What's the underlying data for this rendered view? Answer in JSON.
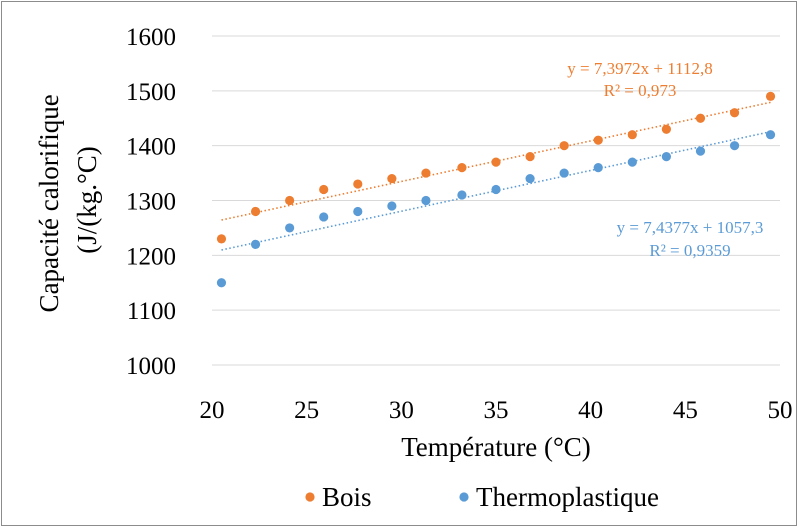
{
  "chart_data": {
    "type": "scatter",
    "xlabel": "Température (°C)",
    "ylabel_lines": [
      "Capacité calorifique",
      "(J/(kg.°C)"
    ],
    "xlim": [
      20,
      50
    ],
    "ylim": [
      1000,
      1600
    ],
    "x_ticks": [
      "20",
      "25",
      "30",
      "35",
      "40",
      "45",
      "50"
    ],
    "y_ticks": [
      "1000",
      "1100",
      "1200",
      "1300",
      "1400",
      "1500",
      "1600"
    ],
    "grid": true,
    "legend_position": "bottom",
    "series": [
      {
        "name": "Bois",
        "color": "#ED7D31",
        "x": [
          20.5,
          22.3,
          24.1,
          25.9,
          27.7,
          29.5,
          31.3,
          33.2,
          35.0,
          36.8,
          38.6,
          40.4,
          42.2,
          44.0,
          45.8,
          47.6,
          49.5
        ],
        "y": [
          1230,
          1280,
          1300,
          1320,
          1330,
          1340,
          1350,
          1360,
          1370,
          1380,
          1400,
          1410,
          1420,
          1430,
          1450,
          1460,
          1490
        ],
        "trendline": {
          "slope": 7.3972,
          "intercept": 1112.8,
          "equation": "y = 7,3972x + 1112,8",
          "r2": "R² = 0,973"
        }
      },
      {
        "name": "Thermoplastique",
        "color": "#5B9BD5",
        "x": [
          20.5,
          22.3,
          24.1,
          25.9,
          27.7,
          29.5,
          31.3,
          33.2,
          35.0,
          36.8,
          38.6,
          40.4,
          42.2,
          44.0,
          45.8,
          47.6,
          49.5
        ],
        "y": [
          1150,
          1220,
          1250,
          1270,
          1280,
          1290,
          1300,
          1310,
          1320,
          1340,
          1350,
          1360,
          1370,
          1380,
          1390,
          1400,
          1420
        ],
        "trendline": {
          "slope": 7.4377,
          "intercept": 1057.3,
          "equation": "y = 7,4377x + 1057,3",
          "r2": "R² = 0,9359"
        }
      }
    ]
  }
}
